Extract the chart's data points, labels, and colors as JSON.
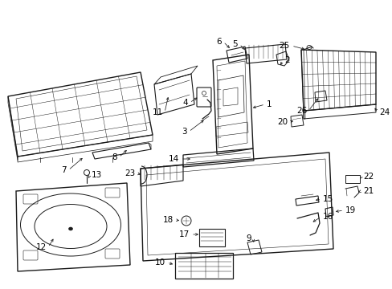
{
  "background_color": "#ffffff",
  "line_color": "#1a1a1a",
  "text_color": "#000000",
  "figsize": [
    4.89,
    3.6
  ],
  "dpi": 100,
  "label_fontsize": 7.5,
  "lw": 0.7
}
